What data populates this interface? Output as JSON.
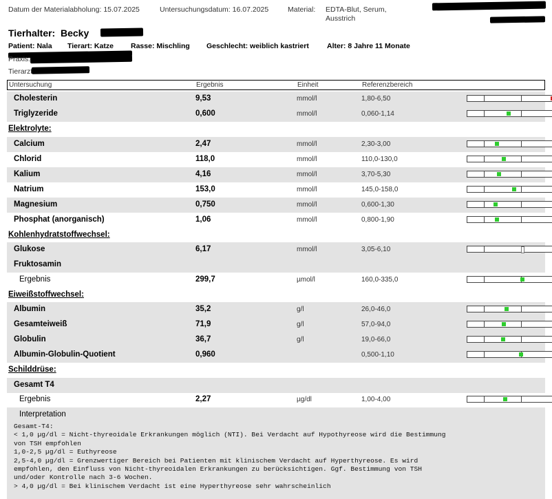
{
  "header": {
    "pickup_label": "Datum der Materialabholung:",
    "pickup_date": "15.07.2025",
    "exam_label": "Untersuchungsdatum:",
    "exam_date": "16.07.2025",
    "material_label": "Material:",
    "material_value_1": "EDTA-Blut, Serum,",
    "material_value_2": "Ausstrich"
  },
  "owner": {
    "label": "Tierhalter:",
    "first_name": "Becky"
  },
  "patient": {
    "patient_label": "Patient:",
    "patient": "Nala",
    "species_label": "Tierart:",
    "species": "Katze",
    "breed_label": "Rasse:",
    "breed": "Mischling",
    "sex_label": "Geschlecht:",
    "sex": "weiblich kastriert",
    "age_label": "Alter:",
    "age": "8 Jahre 11 Monate"
  },
  "practice_label": "Praxis:",
  "vet_label": "Tierarzt:",
  "columns": {
    "test": "Untersuchung",
    "result": "Ergebnis",
    "unit": "Einheit",
    "reference": "Referenzbereich"
  },
  "rows": [
    {
      "kind": "item",
      "name": "Cholesterin",
      "value": "9,53",
      "unit": "mmol/l",
      "ref": "1,80-6,50",
      "marker": 1.0,
      "status": "high"
    },
    {
      "kind": "item",
      "name": "Triglyzeride",
      "value": "0,600",
      "unit": "mmol/l",
      "ref": "0,060-1,14",
      "marker": 0.5,
      "status": "normal"
    },
    {
      "kind": "section",
      "name": "Elektrolyte:"
    },
    {
      "kind": "item",
      "name": "Calcium",
      "value": "2,47",
      "unit": "mmol/l",
      "ref": "2,30-3,00",
      "marker": 0.24,
      "status": "normal"
    },
    {
      "kind": "item",
      "name": "Chlorid",
      "value": "118,0",
      "unit": "mmol/l",
      "ref": "110,0-130,0",
      "marker": 0.4,
      "status": "normal"
    },
    {
      "kind": "item",
      "name": "Kalium",
      "value": "4,16",
      "unit": "mmol/l",
      "ref": "3,70-5,30",
      "marker": 0.29,
      "status": "normal"
    },
    {
      "kind": "item",
      "name": "Natrium",
      "value": "153,0",
      "unit": "mmol/l",
      "ref": "145,0-158,0",
      "marker": 0.62,
      "status": "normal"
    },
    {
      "kind": "item",
      "name": "Magnesium",
      "value": "0,750",
      "unit": "mmol/l",
      "ref": "0,600-1,30",
      "marker": 0.21,
      "status": "normal"
    },
    {
      "kind": "item",
      "name": "Phosphat (anorganisch)",
      "value": "1,06",
      "unit": "mmol/l",
      "ref": "0,800-1,90",
      "marker": 0.24,
      "status": "normal"
    },
    {
      "kind": "section",
      "name": "Kohlenhydratstoffwechsel:"
    },
    {
      "kind": "item",
      "name": "Glukose",
      "value": "6,17",
      "unit": "mmol/l",
      "ref": "3,05-6,10",
      "marker": 1.0,
      "status": "borderline"
    },
    {
      "kind": "group",
      "name": "Fruktosamin"
    },
    {
      "kind": "item",
      "name": "Ergebnis",
      "plain": true,
      "value": "299,7",
      "unit": "µmol/l",
      "ref": "160,0-335,0",
      "marker": 0.8,
      "status": "normal"
    },
    {
      "kind": "section",
      "name": "Eiweißstoffwechsel:"
    },
    {
      "kind": "item",
      "name": "Albumin",
      "value": "35,2",
      "unit": "g/l",
      "ref": "26,0-46,0",
      "marker": 0.46,
      "status": "normal"
    },
    {
      "kind": "item",
      "name": "Gesamteiweiß",
      "value": "71,9",
      "unit": "g/l",
      "ref": "57,0-94,0",
      "marker": 0.4,
      "status": "normal"
    },
    {
      "kind": "item",
      "name": "Globulin",
      "value": "36,7",
      "unit": "g/l",
      "ref": "19,0-66,0",
      "marker": 0.38,
      "status": "normal"
    },
    {
      "kind": "item",
      "name": "Albumin-Globulin-Quotient",
      "value": "0,960",
      "unit": "",
      "ref": "0,500-1,10",
      "marker": 0.77,
      "status": "normal"
    },
    {
      "kind": "section",
      "name": "Schilddrüse:"
    },
    {
      "kind": "group",
      "name": "Gesamt T4"
    },
    {
      "kind": "item",
      "name": "Ergebnis",
      "plain": true,
      "value": "2,27",
      "unit": "µg/dl",
      "ref": "1,00-4,00",
      "marker": 0.42,
      "status": "normal"
    }
  ],
  "interpretation": {
    "title": "Interpretation",
    "lines": [
      "Gesamt-T4:",
      "< 1,0 µg/dl = Nicht-thyreoidale Erkrankungen möglich (NTI). Bei Verdacht auf Hypothyreose wird die Bestimmung",
      "von TSH empfohlen",
      "1,0-2,5 µg/dl = Euthyreose",
      "2,5-4,0 µg/dl = Grenzwertiger Bereich bei Patienten mit klinischem Verdacht auf Hyperthyreose. Es wird",
      "empfohlen, den Einfluss von Nicht-thyreoidalen Erkrankungen zu berücksichtigen. Ggf. Bestimmung von TSH",
      "und/oder Kontrolle nach 3-6 Wochen.",
      "> 4,0 µg/dl = Bei klinischem Verdacht ist eine Hyperthyreose sehr wahrscheinlich"
    ]
  },
  "colors": {
    "normal": "#2ecc2e",
    "high": "#d42020",
    "borderline": "#ffffff"
  }
}
